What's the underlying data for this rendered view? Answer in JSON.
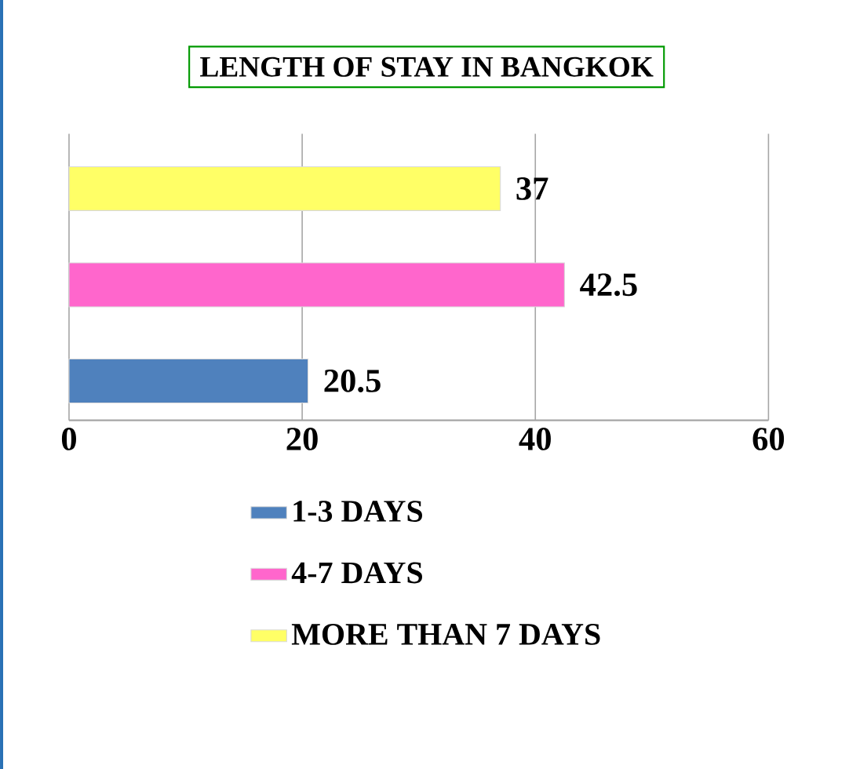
{
  "chart_data": {
    "type": "bar",
    "orientation": "horizontal",
    "title": "LENGTH OF STAY IN BANGKOK",
    "categories": [
      null,
      null,
      null
    ],
    "series": [
      {
        "name": "1-3 DAYS",
        "color": "#4f81bd",
        "values": [
          null,
          null,
          20.5
        ]
      },
      {
        "name": "4-7 DAYS",
        "color": "#ff66cc",
        "values": [
          null,
          42.5,
          null
        ]
      },
      {
        "name": "MORE THAN 7 DAYS",
        "color": "#ffff66",
        "values": [
          37,
          null,
          null
        ]
      }
    ],
    "xlim": [
      0,
      60
    ],
    "xticks": [
      0,
      20,
      40,
      60
    ],
    "grid": "x",
    "legend": "bottom",
    "data_labels": true
  }
}
